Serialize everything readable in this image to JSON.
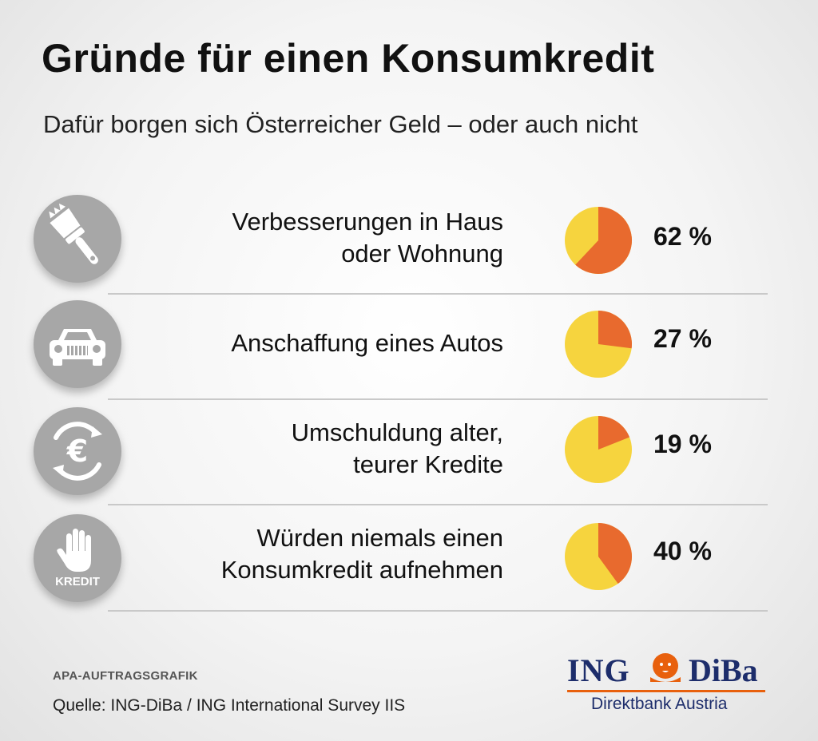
{
  "header": {
    "title": "Gründe für einen Konsumkredit",
    "subtitle": "Dafür borgen sich Österreicher Geld – oder auch nicht"
  },
  "colors": {
    "pie_slice": "#e86a2e",
    "pie_rest": "#f6d43e",
    "icon_bg": "#a7a7a7"
  },
  "chart_data": {
    "type": "pie",
    "title": "Gründe für einen Konsumkredit",
    "subtitle": "Dafür borgen sich Österreicher Geld – oder auch nicht",
    "unit": "%",
    "items": [
      {
        "label_lines": [
          "Verbesserungen in Haus",
          "oder Wohnung"
        ],
        "value": 62,
        "value_label": "62 %",
        "icon": "paintbrush-icon"
      },
      {
        "label_lines": [
          "Anschaffung eines Autos"
        ],
        "value": 27,
        "value_label": "27 %",
        "icon": "car-icon"
      },
      {
        "label_lines": [
          "Umschuldung alter,",
          "teurer Kredite"
        ],
        "value": 19,
        "value_label": "19 %",
        "icon": "euro-cycle-icon"
      },
      {
        "label_lines": [
          "Würden niemals einen",
          "Konsumkredit aufnehmen"
        ],
        "value": 40,
        "value_label": "40 %",
        "icon": "stop-hand-icon",
        "icon_text": "KREDIT"
      }
    ]
  },
  "footer": {
    "agency": "APA-AUFTRAGSGRAFIK",
    "source": "Quelle: ING-DiBa / ING International Survey IIS",
    "logo": {
      "ing": "ING",
      "diba": "DiBa",
      "subline": "Direktbank Austria"
    }
  }
}
